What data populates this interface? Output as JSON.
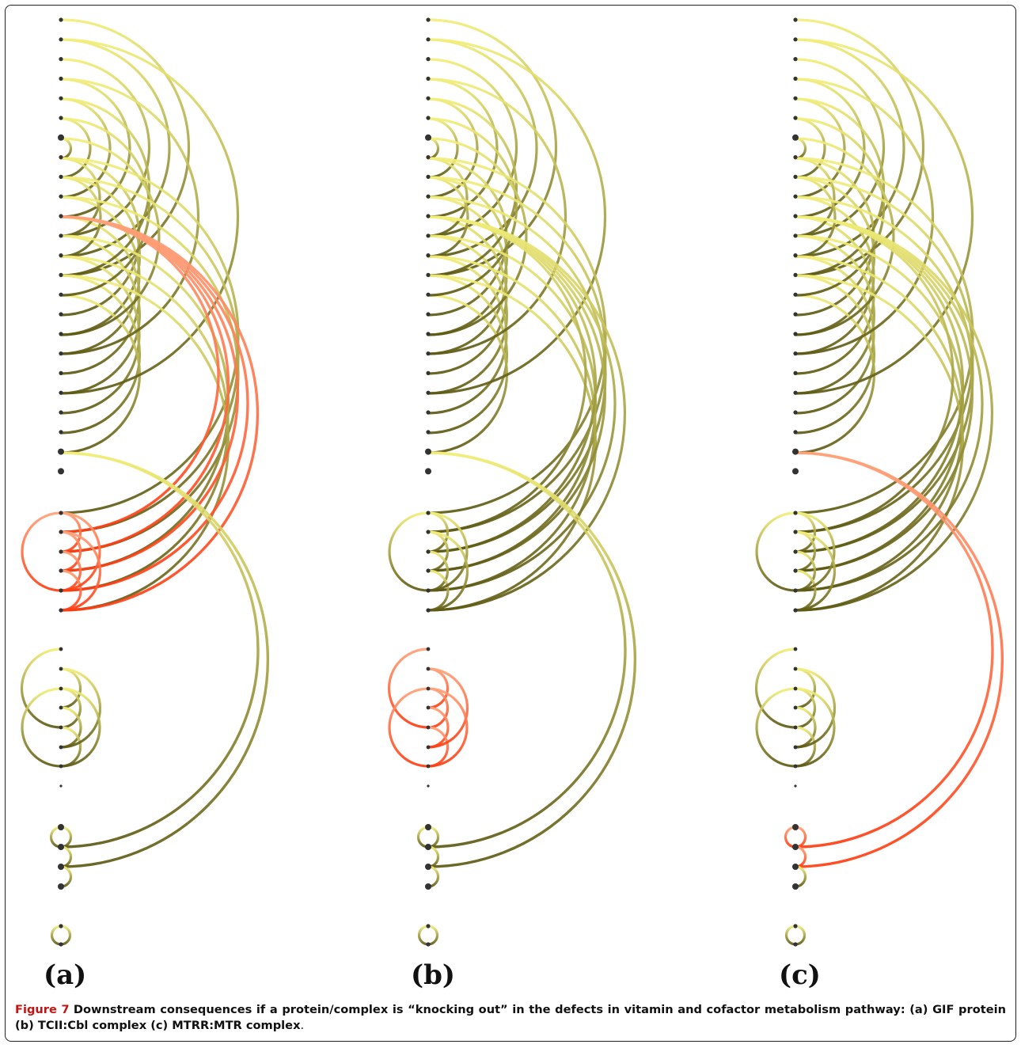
{
  "figure": {
    "label": "Figure 7",
    "caption_bold": "Downstream consequences if a protein/complex is “knocking out” in the defects in vitamin and cofactor metabolism pathway: (a) GIF protein (b) TCII:Cbl complex (c) MTRR:MTR complex",
    "caption_end": "."
  },
  "panels": [
    {
      "label": "(a)",
      "knockout": "GIF protein"
    },
    {
      "label": "(b)",
      "knockout": "TCII:Cbl complex"
    },
    {
      "label": "(c)",
      "knockout": "MTRR:MTR complex"
    }
  ],
  "colors": {
    "normal_start": "#f2ee7a",
    "normal_end": "#5e5a14",
    "affected_start": "#ffb08a",
    "affected_end": "#ff4418",
    "node": "#333333"
  }
}
